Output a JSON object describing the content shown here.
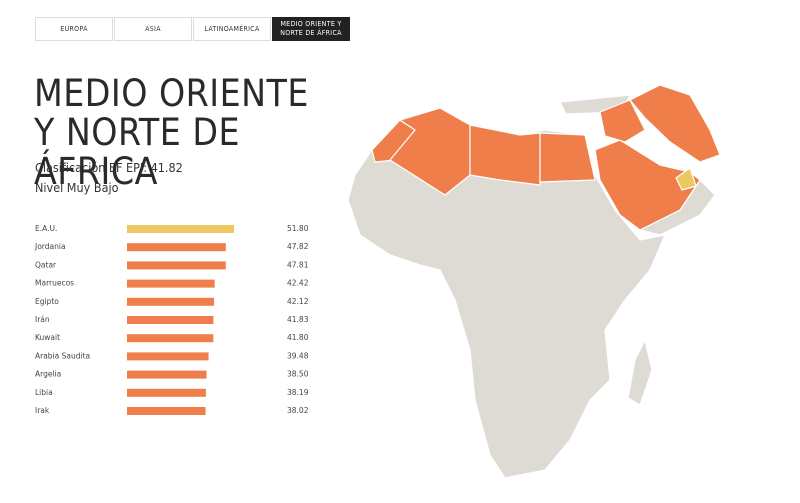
{
  "tabs": [
    "EUROPA",
    "ASIA",
    "LATINOAMÉRICA",
    "MEDIO ORIENTE Y NORTE DE ÁFRICA"
  ],
  "heading": {
    "title": "MEDIO ORIENTE Y NORTE DE ÁFRICA",
    "score": "Clasificación EF EPI: 41.82",
    "level": "Nivel Muy Bajo"
  },
  "chart_data": {
    "type": "bar",
    "orientation": "horizontal",
    "categories": [
      "E.A.U.",
      "Jordania",
      "Qatar",
      "Marruecos",
      "Egipto",
      "Irán",
      "Kuwait",
      "Arabia Saudita",
      "Argelia",
      "Libia",
      "Irak"
    ],
    "values": [
      51.8,
      47.82,
      47.81,
      42.42,
      42.12,
      41.83,
      41.8,
      39.48,
      38.5,
      38.19,
      38.02
    ],
    "value_labels": [
      "51.80",
      "47.82",
      "47.81",
      "42.42",
      "42.12",
      "41.83",
      "41.80",
      "39.48",
      "38.50",
      "38.19",
      "38.02"
    ],
    "colors": [
      "#ecc862",
      "#f07e4b",
      "#f07e4b",
      "#f07e4b",
      "#f07e4b",
      "#f07e4b",
      "#f07e4b",
      "#f07e4b",
      "#f07e4b",
      "#f07e4b",
      "#f07e4b"
    ]
  }
}
